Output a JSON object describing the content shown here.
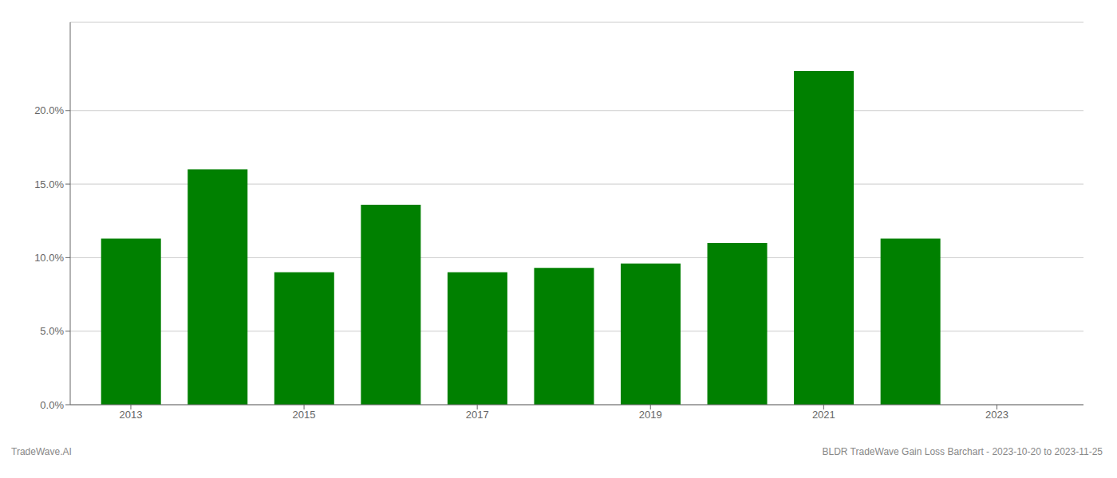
{
  "chart_data": {
    "type": "bar",
    "x": [
      2013,
      2014,
      2015,
      2016,
      2017,
      2018,
      2019,
      2020,
      2021,
      2022,
      2023
    ],
    "values": [
      0.113,
      0.16,
      0.09,
      0.136,
      0.09,
      0.093,
      0.096,
      0.11,
      0.227,
      0.113,
      0.0
    ],
    "color": "#008000",
    "xlim": [
      2012.3,
      2024.0
    ],
    "xticks": [
      2013,
      2015,
      2017,
      2019,
      2021,
      2023
    ],
    "ylim": [
      0,
      0.26
    ],
    "yticks": [
      {
        "value": 0.0,
        "label": "0.0%"
      },
      {
        "value": 0.05,
        "label": "5.0%"
      },
      {
        "value": 0.1,
        "label": "10.0%"
      },
      {
        "value": 0.15,
        "label": "15.0%"
      },
      {
        "value": 0.2,
        "label": "20.0%"
      }
    ],
    "grid": true,
    "annotations": [
      "TradeWave.AI",
      "BLDR TradeWave Gain Loss Barchart - 2023-10-20 to 2023-11-25"
    ]
  }
}
